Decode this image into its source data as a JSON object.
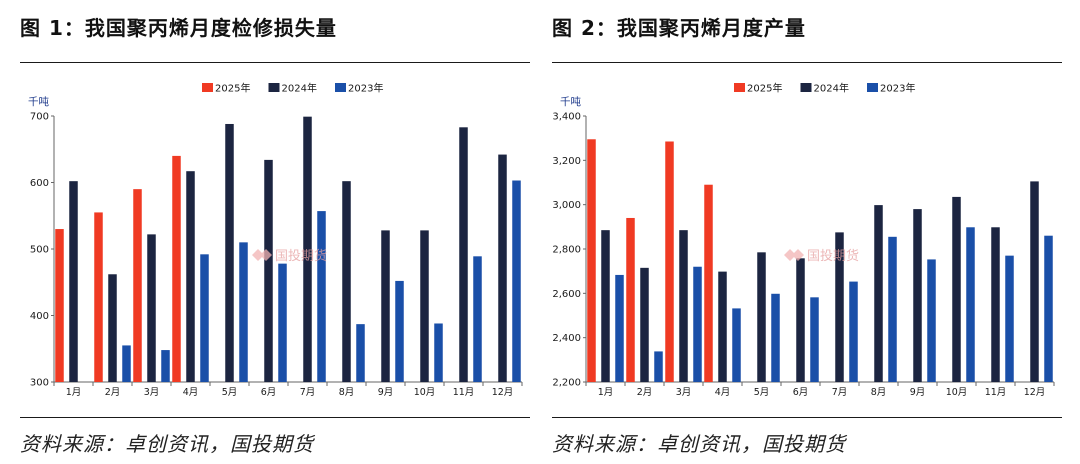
{
  "colors": {
    "series_2025": "#f03a23",
    "series_2024": "#1c2541",
    "series_2023": "#1a4fa8",
    "unit": "#1f3b8c"
  },
  "watermark": {
    "icon": "diamond-logo-icon",
    "text": "国投期货"
  },
  "chart_data": [
    {
      "figure_title": "图 1：我国聚丙烯月度检修损失量",
      "source": "资料来源：卓创资讯，国投期货",
      "type": "bar",
      "unit": "千吨",
      "categories": [
        "1月",
        "2月",
        "3月",
        "4月",
        "5月",
        "6月",
        "7月",
        "8月",
        "9月",
        "10月",
        "11月",
        "12月"
      ],
      "ylim": [
        300,
        700
      ],
      "yticks": [
        300,
        400,
        500,
        600,
        700
      ],
      "ytick_labels": [
        "300",
        "400",
        "500",
        "600",
        "700"
      ],
      "legend_position": "top-center",
      "grid": false,
      "series": [
        {
          "name": "2025年",
          "color": "#f03a23",
          "values": [
            530,
            555,
            590,
            640,
            null,
            null,
            null,
            null,
            null,
            null,
            null,
            null
          ]
        },
        {
          "name": "2024年",
          "color": "#1c2541",
          "values": [
            602,
            462,
            522,
            617,
            688,
            634,
            699,
            602,
            528,
            528,
            683,
            642
          ]
        },
        {
          "name": "2023年",
          "color": "#1a4fa8",
          "values": [
            300,
            355,
            348,
            492,
            510,
            478,
            557,
            387,
            452,
            388,
            489,
            603
          ]
        }
      ]
    },
    {
      "figure_title": "图 2：我国聚丙烯月度产量",
      "source": "资料来源：卓创资讯，国投期货",
      "type": "bar",
      "unit": "千吨",
      "categories": [
        "1月",
        "2月",
        "3月",
        "4月",
        "5月",
        "6月",
        "7月",
        "8月",
        "9月",
        "10月",
        "11月",
        "12月"
      ],
      "ylim": [
        2200,
        3400
      ],
      "yticks": [
        2200,
        2400,
        2600,
        2800,
        3000,
        3200,
        3400
      ],
      "ytick_labels": [
        "2,200",
        "2,400",
        "2,600",
        "2,800",
        "3,000",
        "3,200",
        "3,400"
      ],
      "legend_position": "top-center",
      "grid": false,
      "series": [
        {
          "name": "2025年",
          "color": "#f03a23",
          "values": [
            3295,
            2940,
            3285,
            3090,
            null,
            null,
            null,
            null,
            null,
            null,
            null,
            null
          ]
        },
        {
          "name": "2024年",
          "color": "#1c2541",
          "values": [
            2885,
            2715,
            2885,
            2698,
            2785,
            2758,
            2875,
            2998,
            2980,
            3035,
            2898,
            3105
          ]
        },
        {
          "name": "2023年",
          "color": "#1a4fa8",
          "values": [
            2683,
            2338,
            2720,
            2532,
            2598,
            2582,
            2653,
            2855,
            2753,
            2898,
            2770,
            2860
          ]
        }
      ]
    }
  ]
}
